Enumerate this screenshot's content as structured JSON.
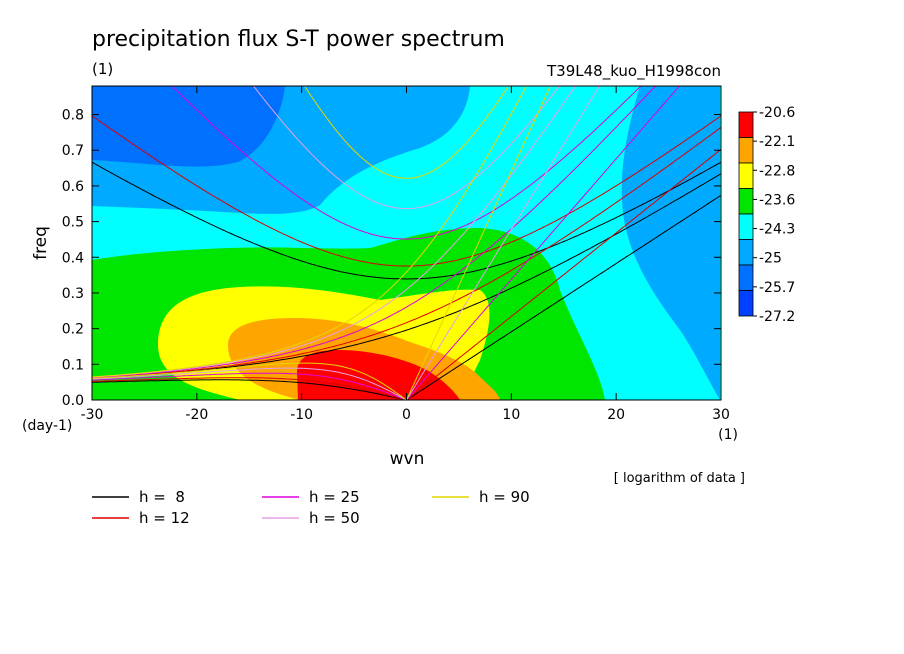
{
  "title": "precipitation flux S-T power spectrum",
  "units_label": "(1)",
  "experiment": "T39L48_kuo_H1998con",
  "note": "[ logarithm of data ]",
  "chart_data": {
    "type": "heatmap",
    "title": "precipitation flux S-T power spectrum",
    "xlabel": "wvn",
    "ylabel": "freq",
    "x_unit": "(1)",
    "y_unit": "(day-1)",
    "xlim": [
      -30,
      30
    ],
    "ylim": [
      0,
      0.88
    ],
    "x_ticks": [
      -30,
      -20,
      -10,
      0,
      10,
      20,
      30
    ],
    "x_tick_labels": [
      "-30",
      "-20",
      "-10",
      "0",
      "10",
      "20",
      "30"
    ],
    "y_ticks": [
      0.0,
      0.1,
      0.2,
      0.3,
      0.4,
      0.5,
      0.6,
      0.7,
      0.8
    ],
    "y_tick_labels": [
      "0.0",
      "0.1",
      "0.2",
      "0.3",
      "0.4",
      "0.5",
      "0.6",
      "0.7",
      "0.8"
    ],
    "colorbar": {
      "labels": [
        "-20.6",
        "-22.1",
        "-22.8",
        "-23.6",
        "-24.3",
        "-25",
        "-25.7",
        "-27.2"
      ],
      "colors": [
        "#ff0000",
        "#ffa500",
        "#ffff00",
        "#00e600",
        "#00ffff",
        "#00aaff",
        "#0070ff",
        "#0040ff"
      ]
    },
    "dispersion_curves": [
      {
        "name": "h =  8",
        "h": 8,
        "color": "#000000"
      },
      {
        "name": "h = 12",
        "h": 12,
        "color": "#dd0000"
      },
      {
        "name": "h = 25",
        "h": 25,
        "color": "#dd00dd"
      },
      {
        "name": "h = 50",
        "h": 50,
        "color": "#e5a0e5"
      },
      {
        "name": "h = 90",
        "h": 90,
        "color": "#e6d600"
      }
    ]
  }
}
